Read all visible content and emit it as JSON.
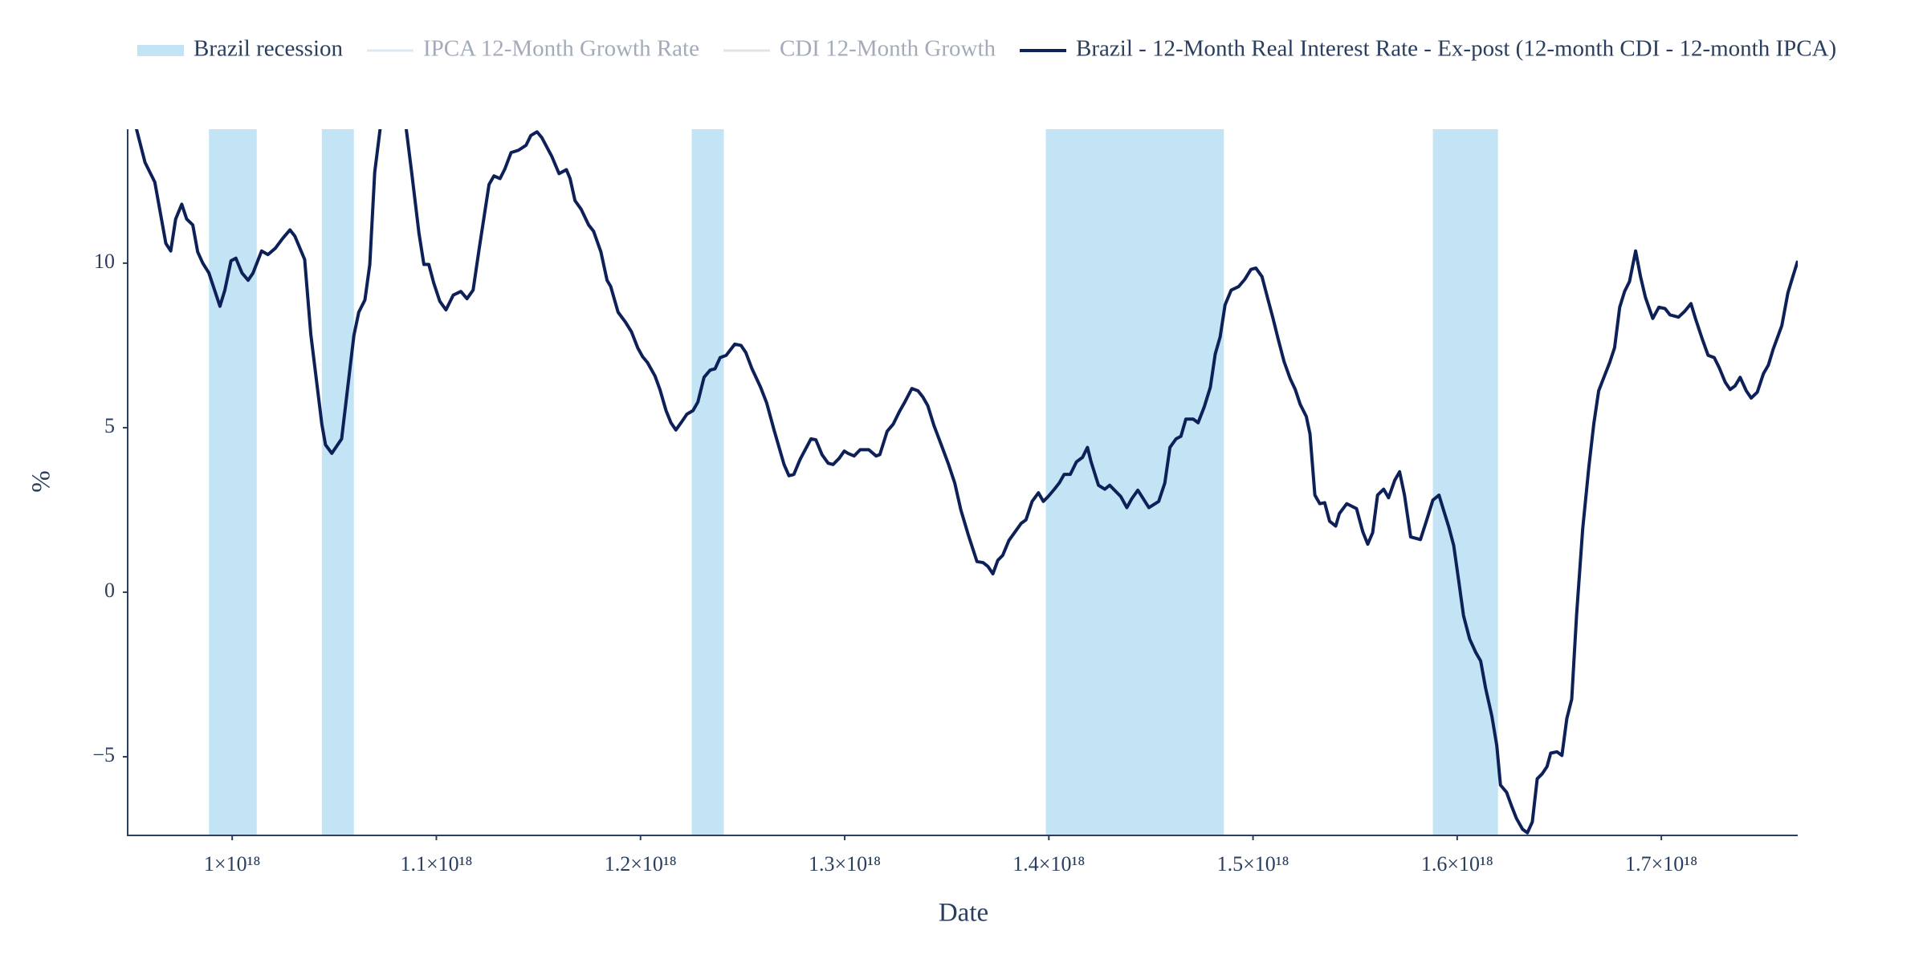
{
  "chart_data": {
    "type": "line",
    "x_title": "Date",
    "y_title": "%",
    "xlim": [
      9.488e+17,
      1.7668e+18
    ],
    "ylim": [
      -7.39,
      14.07
    ],
    "xticks": [
      {
        "value": 1e+18,
        "label": "1×10¹⁸"
      },
      {
        "value": 1.1e+18,
        "label": "1.1×10¹⁸"
      },
      {
        "value": 1.2e+18,
        "label": "1.2×10¹⁸"
      },
      {
        "value": 1.3e+18,
        "label": "1.3×10¹⁸"
      },
      {
        "value": 1.4e+18,
        "label": "1.4×10¹⁸"
      },
      {
        "value": 1.5e+18,
        "label": "1.5×10¹⁸"
      },
      {
        "value": 1.6e+18,
        "label": "1.6×10¹⁸"
      },
      {
        "value": 1.7e+18,
        "label": "1.7×10¹⁸"
      }
    ],
    "yticks": [
      {
        "value": -5,
        "label": "−5"
      },
      0,
      5,
      10
    ],
    "grid": false,
    "series": [
      {
        "name": "Brazil recession",
        "color": "#c2e4f4",
        "kind": "band",
        "x0": [
          9.886e+17,
          1.0439e+18,
          1.2251e+18,
          1.3985e+18,
          1.5881e+18
        ],
        "x1": [
          1.012e+18,
          1.0596e+18,
          1.2408e+18,
          1.4857e+18,
          1.62e+18
        ]
      },
      {
        "name": "IPCA 12-Month Growth Rate",
        "color": "#dbe9f6",
        "visible": "legendonly"
      },
      {
        "name": "CDI 12-Month Growth",
        "color": "#e3e3e3",
        "visible": "legendonly"
      },
      {
        "name": "Brazil - 12-Month Real Interest Rate - Ex-post (12-month CDI - 12-month IPCA)",
        "color": "#0d2158",
        "x": [
          9.524e+17,
          9.573e+17,
          9.621e+17,
          9.675e+17,
          9.699e+17,
          9.723e+17,
          9.753e+17,
          9.777e+17,
          9.807e+17,
          9.831e+17,
          9.856e+17,
          9.886e+17,
          9.94e+17,
          9.964e+17,
          9.994e+17,
          1.0018e+18,
          1.0048e+18,
          1.0078e+18,
          1.0102e+18,
          1.0144e+18,
          1.0175e+18,
          1.0211e+18,
          1.0247e+18,
          1.0283e+18,
          1.0307e+18,
          1.0355e+18,
          1.0385e+18,
          1.0439e+18,
          1.0457e+18,
          1.0488e+18,
          1.0536e+18,
          1.0566e+18,
          1.0596e+18,
          1.062e+18,
          1.065e+18,
          1.0674e+18,
          1.0698e+18,
          1.0728e+18,
          1.0849e+18,
          1.0879e+18,
          1.0915e+18,
          1.0939e+18,
          1.0963e+18,
          1.0987e+18,
          1.1017e+18,
          1.1047e+18,
          1.1083e+18,
          1.112e+18,
          1.115e+18,
          1.118e+18,
          1.121e+18,
          1.1258e+18,
          1.1282e+18,
          1.1312e+18,
          1.1336e+18,
          1.1366e+18,
          1.1402e+18,
          1.1439e+18,
          1.1463e+18,
          1.1493e+18,
          1.1517e+18,
          1.1565e+18,
          1.1601e+18,
          1.1637e+18,
          1.1655e+18,
          1.1679e+18,
          1.1709e+18,
          1.1746e+18,
          1.177e+18,
          1.1806e+18,
          1.1836e+18,
          1.1854e+18,
          1.189e+18,
          1.1926e+18,
          1.1956e+18,
          1.1986e+18,
          1.201e+18,
          1.2034e+18,
          1.2071e+18,
          1.2095e+18,
          1.2125e+18,
          1.2149e+18,
          1.2173e+18,
          1.2203e+18,
          1.2227e+18,
          1.2257e+18,
          1.2281e+18,
          1.2311e+18,
          1.2341e+18,
          1.2365e+18,
          1.239e+18,
          1.242e+18,
          1.2462e+18,
          1.2492e+18,
          1.2516e+18,
          1.2546e+18,
          1.2588e+18,
          1.2618e+18,
          1.2654e+18,
          1.2703e+18,
          1.2727e+18,
          1.2751e+18,
          1.2781e+18,
          1.2835e+18,
          1.2859e+18,
          1.2889e+18,
          1.2919e+18,
          1.2943e+18,
          1.2973e+18,
          1.2998e+18,
          1.3016e+18,
          1.3046e+18,
          1.3076e+18,
          1.3118e+18,
          1.3154e+18,
          1.3172e+18,
          1.3208e+18,
          1.3238e+18,
          1.3268e+18,
          1.3292e+18,
          1.3329e+18,
          1.3359e+18,
          1.3383e+18,
          1.3407e+18,
          1.3437e+18,
          1.3473e+18,
          1.3509e+18,
          1.3539e+18,
          1.3569e+18,
          1.3605e+18,
          1.3648e+18,
          1.3678e+18,
          1.3702e+18,
          1.3726e+18,
          1.375e+18,
          1.3774e+18,
          1.3804e+18,
          1.3834e+18,
          1.3864e+18,
          1.3888e+18,
          1.3918e+18,
          1.3949e+18,
          1.3973e+18,
          1.3997e+18,
          1.4027e+18,
          1.4051e+18,
          1.4075e+18,
          1.4105e+18,
          1.4135e+18,
          1.4165e+18,
          1.4189e+18,
          1.4207e+18,
          1.4243e+18,
          1.4274e+18,
          1.4298e+18,
          1.4352e+18,
          1.4382e+18,
          1.4406e+18,
          1.4436e+18,
          1.449e+18,
          1.4538e+18,
          1.4568e+18,
          1.4593e+18,
          1.4623e+18,
          1.4647e+18,
          1.4671e+18,
          1.4707e+18,
          1.4731e+18,
          1.4761e+18,
          1.4791e+18,
          1.4815e+18,
          1.4839e+18,
          1.4863e+18,
          1.4893e+18,
          1.493e+18,
          1.496e+18,
          1.499e+18,
          1.5014e+18,
          1.5044e+18,
          1.5074e+18,
          1.5098e+18,
          1.5122e+18,
          1.5152e+18,
          1.5182e+18,
          1.5207e+18,
          1.5231e+18,
          1.5261e+18,
          1.5279e+18,
          1.5303e+18,
          1.5327e+18,
          1.5351e+18,
          1.5375e+18,
          1.5405e+18,
          1.5423e+18,
          1.5459e+18,
          1.5507e+18,
          1.5538e+18,
          1.5562e+18,
          1.5586e+18,
          1.561e+18,
          1.564e+18,
          1.5664e+18,
          1.5694e+18,
          1.5718e+18,
          1.5742e+18,
          1.5772e+18,
          1.582e+18,
          1.5851e+18,
          1.5881e+18,
          1.5911e+18,
          1.5935e+18,
          1.5959e+18,
          1.5983e+18,
          1.6007e+18,
          1.6031e+18,
          1.6061e+18,
          1.6091e+18,
          1.6115e+18,
          1.6139e+18,
          1.617e+18,
          1.6194e+18,
          1.6212e+18,
          1.6242e+18,
          1.6266e+18,
          1.629e+18,
          1.632e+18,
          1.6344e+18,
          1.6368e+18,
          1.6392e+18,
          1.6416e+18,
          1.644e+18,
          1.6458e+18,
          1.6489e+18,
          1.6513e+18,
          1.6537e+18,
          1.6561e+18,
          1.6585e+18,
          1.6615e+18,
          1.6645e+18,
          1.6669e+18,
          1.6693e+18,
          1.6723e+18,
          1.6747e+18,
          1.6771e+18,
          1.6796e+18,
          1.682e+18,
          1.6844e+18,
          1.6874e+18,
          1.6898e+18,
          1.6922e+18,
          1.6958e+18,
          1.6988e+18,
          1.7018e+18,
          1.7042e+18,
          1.7084e+18,
          1.7115e+18,
          1.7145e+18,
          1.7169e+18,
          1.7199e+18,
          1.7229e+18,
          1.7259e+18,
          1.7283e+18,
          1.7313e+18,
          1.7337e+18,
          1.7361e+18,
          1.7386e+18,
          1.7416e+18,
          1.744e+18,
          1.747e+18,
          1.75e+18,
          1.7524e+18,
          1.7548e+18,
          1.759e+18,
          1.762e+18,
          1.7644e+18,
          1.7668e+18
        ],
        "values": [
          14.25,
          13.06,
          12.46,
          10.6,
          10.37,
          11.34,
          11.79,
          11.34,
          11.16,
          10.34,
          10.0,
          9.7,
          8.69,
          9.18,
          10.07,
          10.15,
          9.7,
          9.48,
          9.7,
          10.37,
          10.26,
          10.45,
          10.75,
          11.01,
          10.82,
          10.11,
          7.84,
          5.11,
          4.48,
          4.22,
          4.66,
          6.23,
          7.8,
          8.51,
          8.88,
          9.96,
          12.76,
          14.25,
          14.25,
          12.76,
          10.9,
          9.96,
          9.96,
          9.4,
          8.84,
          8.58,
          9.03,
          9.14,
          8.92,
          9.18,
          10.45,
          12.39,
          12.65,
          12.57,
          12.87,
          13.36,
          13.43,
          13.58,
          13.88,
          13.99,
          13.81,
          13.25,
          12.72,
          12.84,
          12.57,
          11.9,
          11.64,
          11.16,
          10.97,
          10.34,
          9.48,
          9.29,
          8.51,
          8.21,
          7.91,
          7.43,
          7.16,
          6.98,
          6.57,
          6.16,
          5.52,
          5.15,
          4.93,
          5.19,
          5.41,
          5.52,
          5.78,
          6.53,
          6.75,
          6.79,
          7.13,
          7.2,
          7.54,
          7.5,
          7.28,
          6.79,
          6.23,
          5.75,
          4.93,
          3.88,
          3.54,
          3.58,
          4.03,
          4.66,
          4.63,
          4.18,
          3.92,
          3.88,
          4.07,
          4.29,
          4.22,
          4.14,
          4.33,
          4.33,
          4.14,
          4.18,
          4.89,
          5.11,
          5.49,
          5.75,
          6.19,
          6.12,
          5.93,
          5.67,
          5.07,
          4.48,
          3.88,
          3.32,
          2.5,
          1.75,
          0.93,
          0.9,
          0.78,
          0.56,
          0.97,
          1.12,
          1.57,
          1.83,
          2.09,
          2.2,
          2.76,
          3.02,
          2.76,
          2.91,
          3.13,
          3.32,
          3.58,
          3.58,
          3.96,
          4.1,
          4.4,
          3.96,
          3.25,
          3.13,
          3.25,
          2.91,
          2.57,
          2.84,
          3.1,
          2.57,
          2.76,
          3.32,
          4.4,
          4.66,
          4.74,
          5.26,
          5.26,
          5.15,
          5.63,
          6.23,
          7.24,
          7.76,
          8.73,
          9.18,
          9.29,
          9.51,
          9.81,
          9.85,
          9.59,
          8.88,
          8.32,
          7.72,
          7.01,
          6.49,
          6.16,
          5.71,
          5.34,
          4.81,
          2.95,
          2.69,
          2.72,
          2.16,
          2.01,
          2.39,
          2.69,
          2.54,
          1.83,
          1.46,
          1.81,
          2.95,
          3.13,
          2.87,
          3.4,
          3.66,
          2.95,
          1.68,
          1.6,
          2.2,
          2.8,
          2.95,
          2.46,
          1.98,
          1.42,
          0.37,
          -0.71,
          -1.42,
          -1.83,
          -2.09,
          -2.91,
          -3.77,
          -4.66,
          -5.86,
          -6.08,
          -6.49,
          -6.87,
          -7.2,
          -7.31,
          -6.98,
          -5.67,
          -5.52,
          -5.3,
          -4.89,
          -4.85,
          -4.96,
          -3.84,
          -3.25,
          -0.67,
          1.94,
          3.81,
          5.11,
          6.12,
          6.6,
          6.98,
          7.43,
          8.66,
          9.14,
          9.44,
          10.37,
          9.59,
          8.96,
          8.32,
          8.66,
          8.62,
          8.43,
          8.36,
          8.54,
          8.77,
          8.28,
          7.72,
          7.2,
          7.13,
          6.83,
          6.38,
          6.16,
          6.27,
          6.53,
          6.12,
          5.9,
          6.08,
          6.64,
          6.9,
          7.39,
          8.1,
          9.1,
          9.59,
          10.07
        ]
      }
    ]
  }
}
